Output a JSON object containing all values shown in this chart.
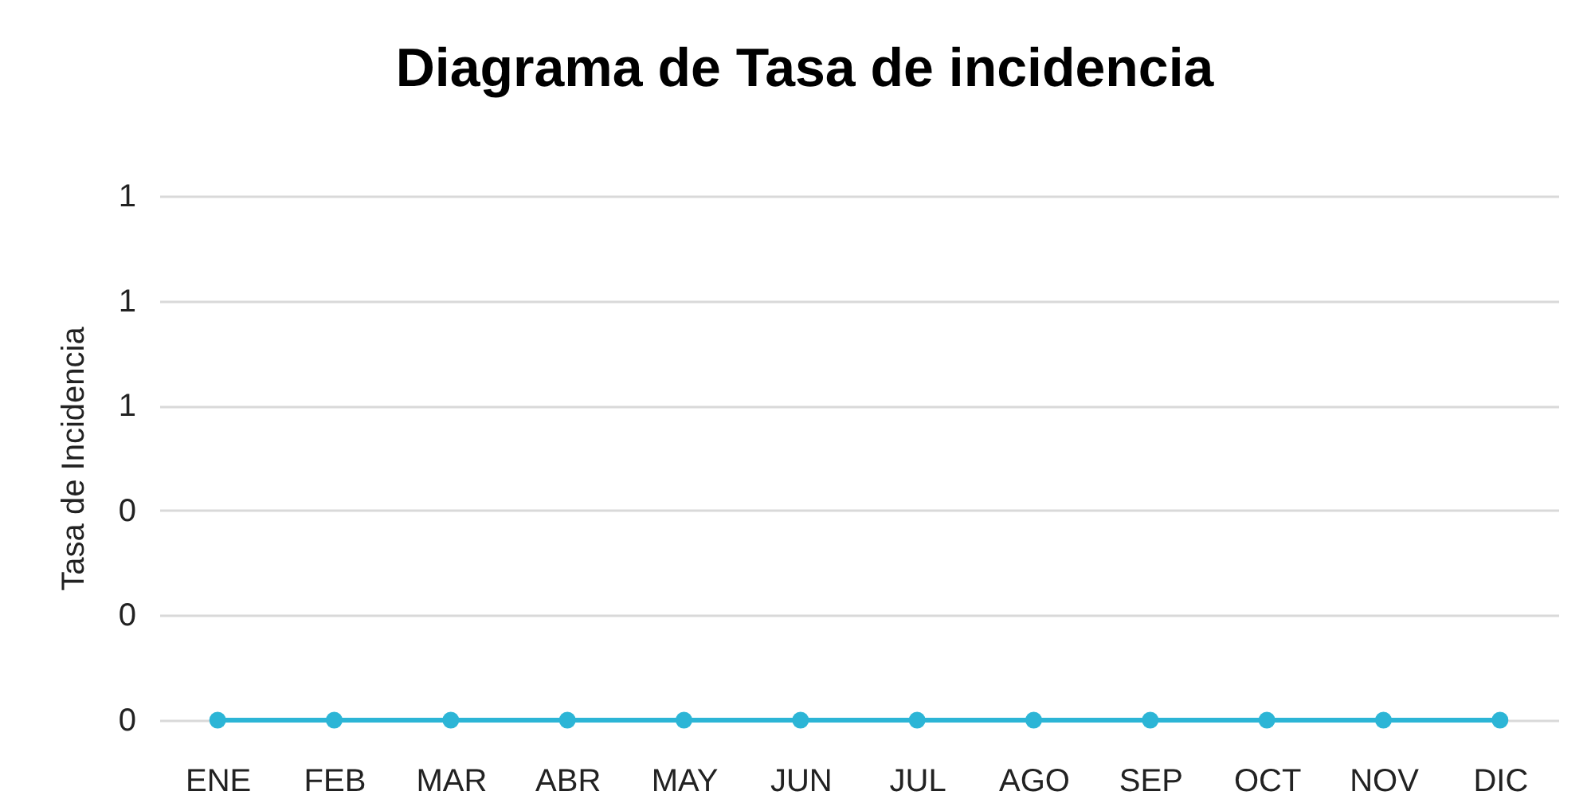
{
  "chart_data": {
    "type": "line",
    "title": "Diagrama de Tasa de incidencia",
    "ylabel": "Tasa de Incidencia",
    "categories": [
      "ENE",
      "FEB",
      "MAR",
      "ABR",
      "MAY",
      "JUN",
      "JUL",
      "AGO",
      "SEP",
      "OCT",
      "NOV",
      "DIC"
    ],
    "series": [
      {
        "color": "#2cb5d6",
        "values": [
          0,
          0,
          0,
          0,
          0,
          0,
          0,
          0,
          0,
          0,
          0,
          0
        ]
      }
    ],
    "ylim": [
      0,
      1
    ],
    "yticks": [
      {
        "value": 0,
        "label": "0"
      },
      {
        "value": 0.2,
        "label": "0"
      },
      {
        "value": 0.4,
        "label": "0"
      },
      {
        "value": 0.6,
        "label": "1"
      },
      {
        "value": 0.8,
        "label": "1"
      },
      {
        "value": 1,
        "label": "1"
      }
    ],
    "grid": "y",
    "marker": "circle"
  }
}
